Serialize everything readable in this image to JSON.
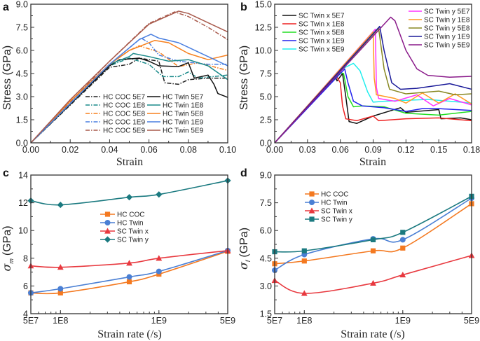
{
  "chart_data": [
    {
      "panel_label": "a",
      "type": "line",
      "xlabel": "Strain",
      "ylabel": "Stress (GPa)",
      "xlim": [
        0,
        0.1
      ],
      "ylim": [
        0,
        9
      ],
      "xscale": "linear",
      "xticks": [
        0,
        0.02,
        0.04,
        0.06,
        0.08,
        0.1
      ],
      "xtick_labels": [
        "0.00",
        "0.02",
        "0.04",
        "0.06",
        "0.08",
        "0.10"
      ],
      "yticks": [
        0,
        1.5,
        3,
        4.5,
        6,
        7.5,
        9
      ],
      "ytick_labels": [
        "0.0",
        "1.5",
        "3.0",
        "4.5",
        "6.0",
        "7.5",
        "9.0"
      ],
      "legend": "bottom-center, two columns",
      "series": [
        {
          "name": "HC COC 5E7",
          "color": "#222222",
          "dash": "dashdot",
          "x": [
            0,
            0.04,
            0.05,
            0.055,
            0.065,
            0.068,
            0.075,
            0.08,
            0.09,
            0.1
          ],
          "y": [
            0,
            4.9,
            5.1,
            5.5,
            5.3,
            3.9,
            3.8,
            4.1,
            4.2,
            4.2
          ]
        },
        {
          "name": "HC COC 1E8",
          "color": "#1a8a8a",
          "dash": "dashdot",
          "x": [
            0,
            0.04,
            0.05,
            0.06,
            0.067,
            0.075,
            0.08,
            0.085,
            0.1
          ],
          "y": [
            0,
            5.0,
            5.5,
            5.1,
            4.3,
            4.3,
            4.6,
            4.2,
            4.4
          ]
        },
        {
          "name": "HC COC 5E8",
          "color": "#f7801e",
          "dash": "dashdot",
          "x": [
            0,
            0.04,
            0.05,
            0.055,
            0.065,
            0.075,
            0.085,
            0.1
          ],
          "y": [
            0,
            5.1,
            6.0,
            6.3,
            5.9,
            4.95,
            5.2,
            4.7
          ]
        },
        {
          "name": "HC COC 1E9",
          "color": "#4a7fe0",
          "dash": "dashdot",
          "x": [
            0,
            0.04,
            0.056,
            0.06,
            0.065,
            0.075,
            0.09,
            0.1
          ],
          "y": [
            0,
            5.1,
            6.8,
            6.5,
            5.7,
            5.3,
            5.1,
            5.1
          ]
        },
        {
          "name": "HC COC 5E9",
          "color": "#a85a4c",
          "dash": "dashdot",
          "x": [
            0,
            0.04,
            0.06,
            0.073,
            0.08,
            0.09,
            0.1
          ],
          "y": [
            0,
            5.3,
            7.75,
            8.5,
            8.2,
            7.5,
            6.7
          ]
        },
        {
          "name": "HC Twin 5E7",
          "color": "#111111",
          "dash": "solid",
          "x": [
            0,
            0.04,
            0.045,
            0.055,
            0.06,
            0.065,
            0.075,
            0.08,
            0.083,
            0.09,
            0.093,
            0.095,
            0.1
          ],
          "y": [
            0,
            5.0,
            5.4,
            5.5,
            5.3,
            5.0,
            4.95,
            5.2,
            4.2,
            4.4,
            3.8,
            3.2,
            2.95
          ]
        },
        {
          "name": "HC Twin 1E8",
          "color": "#1a8a8a",
          "dash": "solid",
          "x": [
            0,
            0.04,
            0.05,
            0.052,
            0.06,
            0.07,
            0.08,
            0.09,
            0.1
          ],
          "y": [
            0,
            5.1,
            5.6,
            5.8,
            5.6,
            5.3,
            5.4,
            5.0,
            4.1
          ]
        },
        {
          "name": "HC Twin 5E8",
          "color": "#f7801e",
          "dash": "solid",
          "x": [
            0,
            0.02,
            0.04,
            0.05,
            0.063,
            0.07,
            0.08,
            0.09,
            0.1
          ],
          "y": [
            0,
            2.7,
            5.1,
            6.0,
            6.65,
            6.5,
            5.8,
            5.4,
            5.7
          ]
        },
        {
          "name": "HC Twin 1E9",
          "color": "#4a7fe0",
          "dash": "solid",
          "x": [
            0,
            0.04,
            0.055,
            0.061,
            0.065,
            0.075,
            0.08,
            0.09,
            0.1
          ],
          "y": [
            0,
            5.1,
            6.7,
            7.05,
            6.8,
            6.5,
            6.2,
            5.6,
            5.0
          ]
        },
        {
          "name": "HC Twin 5E9",
          "color": "#a85a4c",
          "dash": "solid",
          "x": [
            0,
            0.02,
            0.04,
            0.06,
            0.075,
            0.08,
            0.09,
            0.1
          ],
          "y": [
            0,
            2.8,
            5.3,
            7.7,
            8.55,
            8.4,
            7.8,
            7.2
          ]
        }
      ]
    },
    {
      "panel_label": "b",
      "type": "line",
      "xlabel": "Strain",
      "ylabel": "Stress (GPa)",
      "xlim": [
        0,
        0.18
      ],
      "ylim": [
        0,
        15
      ],
      "xscale": "linear",
      "xticks": [
        0,
        0.03,
        0.06,
        0.09,
        0.12,
        0.15,
        0.18
      ],
      "xtick_labels": [
        "0.00",
        "0.03",
        "0.06",
        "0.09",
        "0.12",
        "0.15",
        "0.18"
      ],
      "yticks": [
        0,
        2.5,
        5,
        7.5,
        10,
        12.5,
        15
      ],
      "ytick_labels": [
        "0.0",
        "2.5",
        "5.0",
        "7.5",
        "10.0",
        "12.5",
        "15.0"
      ],
      "legend": "top, two columns",
      "series": [
        {
          "name": "SC Twin x 5E7",
          "color": "#111111",
          "dash": "solid",
          "x": [
            0,
            0.055,
            0.057,
            0.062,
            0.065,
            0.068,
            0.075,
            0.09,
            0.115,
            0.12,
            0.15,
            0.152,
            0.17,
            0.18
          ],
          "y": [
            0,
            7.3,
            6.7,
            7.5,
            5,
            2.3,
            2.1,
            2.9,
            3.8,
            3.3,
            3.6,
            2.6,
            2.7,
            2.5
          ]
        },
        {
          "name": "SC Twin x 1E8",
          "color": "#ee2222",
          "dash": "solid",
          "x": [
            0,
            0.056,
            0.06,
            0.062,
            0.065,
            0.075,
            0.09,
            0.095,
            0.12,
            0.15,
            0.18
          ],
          "y": [
            0,
            7.3,
            6.5,
            4,
            2.6,
            2.4,
            2.9,
            2.4,
            2.6,
            2.7,
            2.4
          ]
        },
        {
          "name": "SC Twin x 5E8",
          "color": "#22dd22",
          "dash": "solid",
          "x": [
            0,
            0.06,
            0.063,
            0.067,
            0.072,
            0.08,
            0.1,
            0.12,
            0.15,
            0.18
          ],
          "y": [
            0,
            7.6,
            7.5,
            5,
            3.9,
            4.0,
            3.9,
            3.2,
            3.0,
            3.4
          ]
        },
        {
          "name": "SC Twin x 1E9",
          "color": "#2222ee",
          "dash": "solid",
          "x": [
            0,
            0.064,
            0.067,
            0.072,
            0.08,
            0.1,
            0.12,
            0.135,
            0.15,
            0.18
          ],
          "y": [
            0,
            8.0,
            6.5,
            4.5,
            4.0,
            3.8,
            3.4,
            3.7,
            3.7,
            3.5
          ]
        },
        {
          "name": "SC Twin x 5E9",
          "color": "#22eeee",
          "dash": "solid",
          "x": [
            0,
            0.06,
            0.072,
            0.078,
            0.085,
            0.09,
            0.1,
            0.12,
            0.14,
            0.18
          ],
          "y": [
            0,
            7.9,
            8.6,
            7.8,
            5.5,
            4.4,
            4.5,
            4.6,
            4.7,
            4.3
          ]
        },
        {
          "name": "SC Twin y 5E7",
          "color": "#ff33ff",
          "dash": "solid",
          "x": [
            0,
            0.092,
            0.093,
            0.095,
            0.11,
            0.13,
            0.145,
            0.16,
            0.18
          ],
          "y": [
            0,
            12.3,
            6,
            4.8,
            4.5,
            5.2,
            4.0,
            4.8,
            4.1
          ]
        },
        {
          "name": "SC Twin y 1E8",
          "color": "#ff9922",
          "dash": "solid",
          "x": [
            0,
            0.09,
            0.091,
            0.093,
            0.11,
            0.12,
            0.135,
            0.15,
            0.165,
            0.18
          ],
          "y": [
            0,
            12.0,
            7,
            5.2,
            4.8,
            4.3,
            5.4,
            4.3,
            5.3,
            4.2
          ]
        },
        {
          "name": "SC Twin y 5E8",
          "color": "#888822",
          "dash": "solid",
          "x": [
            0,
            0.095,
            0.1,
            0.105,
            0.12,
            0.15,
            0.165,
            0.18
          ],
          "y": [
            0,
            12.4,
            8,
            5.8,
            5.3,
            5.6,
            5.2,
            5.3
          ]
        },
        {
          "name": "SC Twin y 1E9",
          "color": "#1a1a99",
          "dash": "solid",
          "x": [
            0,
            0.096,
            0.1,
            0.107,
            0.115,
            0.13,
            0.16,
            0.18
          ],
          "y": [
            0,
            12.6,
            10,
            6.5,
            5.8,
            5.9,
            6.4,
            5.8
          ]
        },
        {
          "name": "SC Twin y 5E9",
          "color": "#8a1a8a",
          "dash": "solid",
          "x": [
            0,
            0.106,
            0.11,
            0.12,
            0.13,
            0.14,
            0.16,
            0.18
          ],
          "y": [
            0,
            13.6,
            13.2,
            10,
            8,
            7.3,
            7.1,
            7.2
          ]
        }
      ]
    },
    {
      "panel_label": "c",
      "type": "line",
      "xlabel": "Strain rate (/s)",
      "ylabel_main": "σ",
      "ylabel_sub": "m",
      "ylabel_unit": "(GPa)",
      "xlim": [
        50000000.0,
        5000000000.0
      ],
      "ylim": [
        4,
        14
      ],
      "xscale": "log",
      "xticks": [
        50000000.0,
        100000000.0,
        1000000000.0,
        5000000000.0
      ],
      "xtick_labels": [
        "5E7",
        "1E8",
        "1E9",
        "5E9"
      ],
      "yticks": [
        4,
        6,
        8,
        10,
        12,
        14
      ],
      "ytick_labels": [
        "4",
        "6",
        "8",
        "10",
        "12",
        "14"
      ],
      "legend": "center",
      "series": [
        {
          "name": "HC COC",
          "color": "#f47920",
          "marker": "square",
          "x": [
            50000000.0,
            100000000.0,
            500000000.0,
            1000000000.0,
            5000000000.0
          ],
          "y": [
            5.5,
            5.5,
            6.3,
            6.85,
            8.5
          ]
        },
        {
          "name": "HC Twin",
          "color": "#4a7fd4",
          "marker": "circle",
          "x": [
            50000000.0,
            100000000.0,
            500000000.0,
            1000000000.0,
            5000000000.0
          ],
          "y": [
            5.5,
            5.8,
            6.65,
            7.05,
            8.55
          ]
        },
        {
          "name": "SC Twin x",
          "color": "#e8393f",
          "marker": "triangle",
          "x": [
            50000000.0,
            100000000.0,
            500000000.0,
            1000000000.0,
            5000000000.0
          ],
          "y": [
            7.45,
            7.35,
            7.65,
            8.0,
            8.55
          ]
        },
        {
          "name": "SC Twin y",
          "color": "#1b7a80",
          "marker": "diamond",
          "x": [
            50000000.0,
            100000000.0,
            500000000.0,
            1000000000.0,
            5000000000.0
          ],
          "y": [
            12.15,
            11.85,
            12.4,
            12.6,
            13.6
          ]
        }
      ]
    },
    {
      "panel_label": "d",
      "type": "line",
      "xlabel": "Strain rate (/s)",
      "ylabel_main": "σ",
      "ylabel_sub": "f",
      "ylabel_unit": "(GPa)",
      "xlim": [
        50000000.0,
        5000000000.0
      ],
      "ylim": [
        1.5,
        9
      ],
      "xscale": "log",
      "xticks": [
        50000000.0,
        100000000.0,
        1000000000.0,
        5000000000.0
      ],
      "xtick_labels": [
        "5E7",
        "1E8",
        "1E9",
        "5E9"
      ],
      "yticks": [
        1.5,
        3,
        4.5,
        6,
        7.5,
        9
      ],
      "ytick_labels": [
        "1.5",
        "3.0",
        "4.5",
        "6.0",
        "7.5",
        "9.0"
      ],
      "legend": "top-left",
      "series": [
        {
          "name": "HC COC",
          "color": "#f47920",
          "marker": "square",
          "x": [
            50000000.0,
            100000000.0,
            500000000.0,
            1000000000.0,
            5000000000.0
          ],
          "y": [
            4.2,
            4.35,
            4.9,
            5.05,
            7.45
          ]
        },
        {
          "name": "HC Twin",
          "color": "#4a7fd4",
          "marker": "circle",
          "x": [
            50000000.0,
            100000000.0,
            500000000.0,
            1000000000.0,
            5000000000.0
          ],
          "y": [
            3.85,
            4.7,
            5.55,
            5.5,
            7.75
          ]
        },
        {
          "name": "SC Twin x",
          "color": "#e8393f",
          "marker": "triangle",
          "x": [
            50000000.0,
            100000000.0,
            500000000.0,
            1000000000.0,
            5000000000.0
          ],
          "y": [
            3.3,
            2.6,
            3.15,
            3.6,
            4.65
          ]
        },
        {
          "name": "SC Twin y",
          "color": "#1b7a80",
          "marker": "square",
          "x": [
            50000000.0,
            100000000.0,
            500000000.0,
            1000000000.0,
            5000000000.0
          ],
          "y": [
            4.85,
            4.9,
            5.5,
            5.9,
            7.85
          ]
        }
      ]
    }
  ]
}
